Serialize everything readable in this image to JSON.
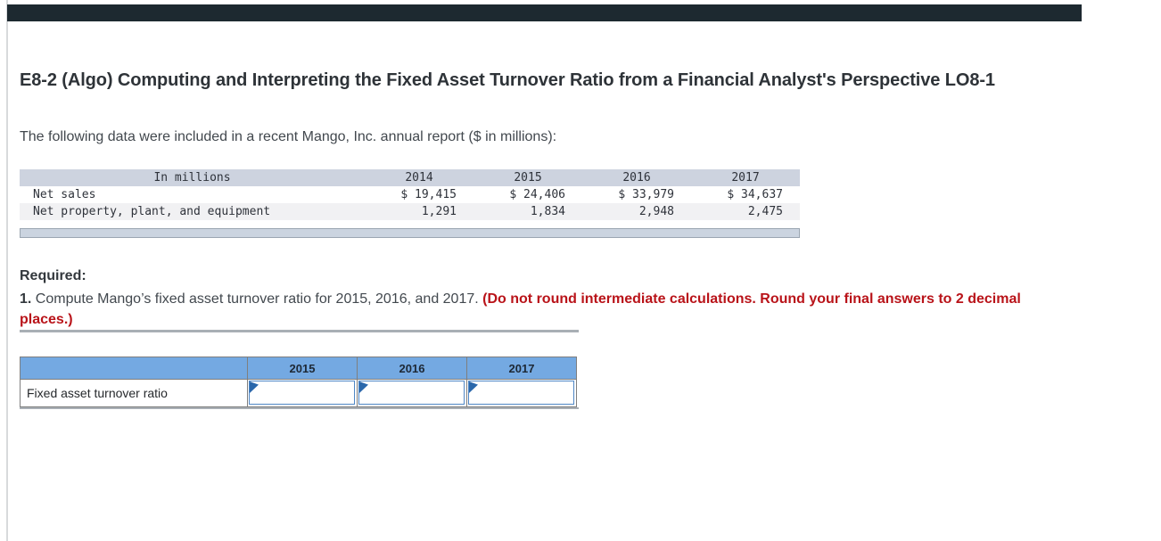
{
  "title": "E8-2 (Algo) Computing and Interpreting the Fixed Asset Turnover Ratio from a Financial Analyst's Perspective LO8-1",
  "intro": "The following data were included in a recent Mango, Inc. annual report ($ in millions):",
  "data_table": {
    "header": [
      "In millions",
      "2014",
      "2015",
      "2016",
      "2017"
    ],
    "rows": [
      {
        "label": "Net sales",
        "values": [
          "$ 19,415",
          "$ 24,406",
          "$ 33,979",
          "$ 34,637"
        ]
      },
      {
        "label": "Net property, plant, and equipment",
        "values": [
          "1,291",
          "1,834",
          "2,948",
          "2,475"
        ]
      }
    ]
  },
  "required": {
    "heading": "Required:",
    "item_number": "1.",
    "item_text": " Compute Mango’s fixed asset turnover ratio for 2015, 2016, and 2017. ",
    "item_note": "(Do not round intermediate calculations. Round your final answers to 2 decimal places.)"
  },
  "answer_table": {
    "col_headers": [
      "2015",
      "2016",
      "2017"
    ],
    "row_label": "Fixed asset turnover ratio",
    "inputs": [
      {
        "value": "",
        "year": "2015"
      },
      {
        "value": "",
        "year": "2016"
      },
      {
        "value": "",
        "year": "2017"
      }
    ]
  },
  "colors": {
    "top_bar": "#1d2930",
    "table_header_bg": "#cdd3df",
    "answer_header_blue": "#74a9e2",
    "required_note_red": "#b91319",
    "input_border_blue": "#4f87c5",
    "marker_blue": "#2a67ab"
  }
}
